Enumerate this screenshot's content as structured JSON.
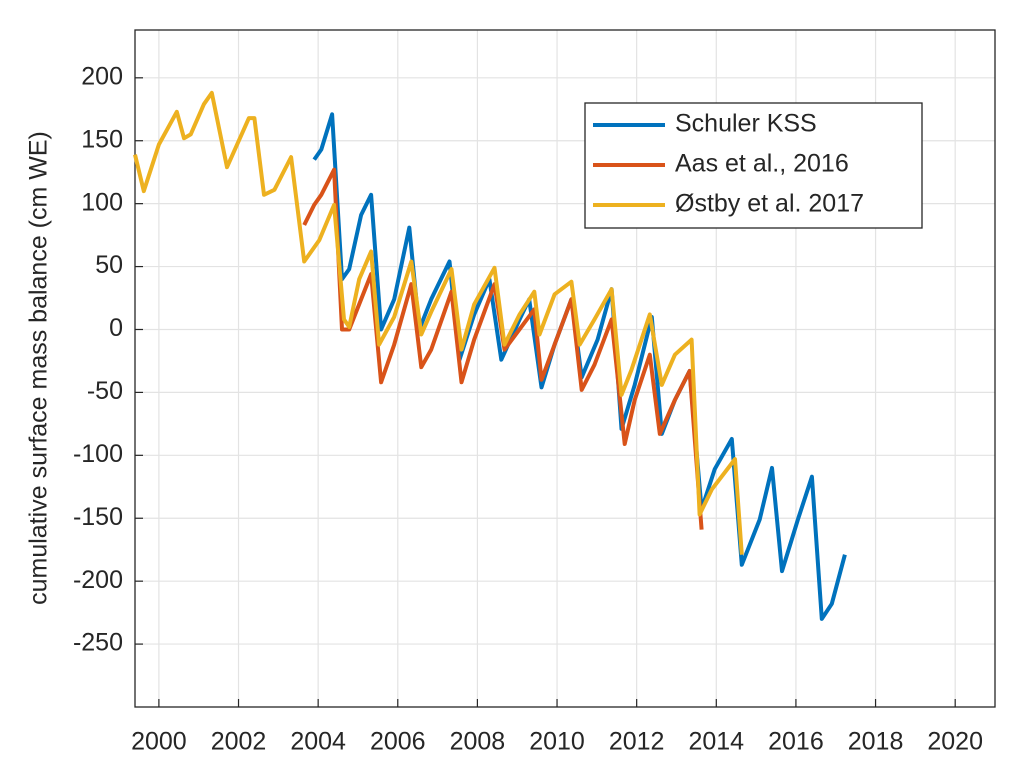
{
  "chart_data": {
    "type": "line",
    "ylabel": "cumulative surface mass balance (cm WE)",
    "xlim": [
      1999.4,
      2021
    ],
    "ylim": [
      -300,
      238
    ],
    "xticks": [
      2000,
      2002,
      2004,
      2006,
      2008,
      2010,
      2012,
      2014,
      2016,
      2018,
      2020
    ],
    "yticks": [
      -250,
      -200,
      -150,
      -100,
      -50,
      0,
      50,
      100,
      150,
      200
    ],
    "grid": true,
    "legend": "northeast",
    "series": [
      {
        "name": "Schuler KSS",
        "color": "#0072BD",
        "x": [
          2003.9,
          2004.08,
          2004.35,
          2004.6,
          2004.78,
          2005.08,
          2005.33,
          2005.58,
          2005.91,
          2006.29,
          2006.54,
          2006.84,
          2007.3,
          2007.55,
          2007.92,
          2008.3,
          2008.6,
          2009.06,
          2009.3,
          2009.61,
          2009.94,
          2010.36,
          2010.62,
          2011.02,
          2011.37,
          2011.62,
          2011.95,
          2012.38,
          2012.63,
          2012.96,
          2013.33,
          2013.63,
          2013.96,
          2014.39,
          2014.64,
          2015.09,
          2015.4,
          2015.65,
          2016.05,
          2016.4,
          2016.65,
          2016.9,
          2017.23
        ],
        "values": [
          135,
          143,
          171,
          40,
          48,
          91,
          107,
          0,
          24,
          81,
          0,
          24,
          54,
          -24,
          12,
          40,
          -24,
          8,
          24,
          -46,
          -12,
          24,
          -38,
          -8,
          32,
          -79,
          -44,
          10,
          -83,
          -56,
          -33,
          -143,
          -111,
          -87,
          -187,
          -151,
          -110,
          -192,
          -151,
          -117,
          -230,
          -218,
          -179
        ]
      },
      {
        "name": "Aas et al., 2016",
        "color": "#D95319",
        "x": [
          2003.65,
          2003.9,
          2004.08,
          2004.4,
          2004.6,
          2004.78,
          2005.33,
          2005.58,
          2005.91,
          2006.34,
          2006.59,
          2006.84,
          2007.35,
          2007.6,
          2007.92,
          2008.43,
          2008.68,
          2009.43,
          2009.61,
          2009.94,
          2010.36,
          2010.62,
          2010.94,
          2011.37,
          2011.7,
          2011.95,
          2012.33,
          2012.58,
          2012.96,
          2013.33,
          2013.63
        ],
        "values": [
          83,
          99,
          107,
          127,
          0,
          0,
          44,
          -42,
          -12,
          36,
          -30,
          -16,
          30,
          -42,
          -8,
          36,
          -16,
          16,
          -40,
          -12,
          24,
          -48,
          -28,
          8,
          -91,
          -56,
          -20,
          -83,
          -56,
          -33,
          -159
        ]
      },
      {
        "name": "Østby et al. 2017",
        "color": "#EDB120",
        "x": [
          1999.4,
          1999.62,
          2000.0,
          2000.45,
          2000.63,
          2000.8,
          2001.13,
          2001.33,
          2001.71,
          2002.26,
          2002.4,
          2002.64,
          2002.9,
          2003.32,
          2003.65,
          2004.03,
          2004.4,
          2004.65,
          2004.78,
          2005.03,
          2005.33,
          2005.53,
          2005.91,
          2006.34,
          2006.59,
          2006.84,
          2007.35,
          2007.6,
          2007.92,
          2008.43,
          2008.68,
          2009.06,
          2009.43,
          2009.56,
          2009.94,
          2010.36,
          2010.57,
          2010.94,
          2011.37,
          2011.62,
          2011.87,
          2012.33,
          2012.63,
          2012.96,
          2013.38,
          2013.58,
          2013.89,
          2014.47,
          2014.64
        ],
        "values": [
          139,
          110,
          147,
          173,
          152,
          155,
          179,
          188,
          129,
          168,
          168,
          107,
          111,
          137,
          54,
          71,
          99,
          8,
          2,
          40,
          62,
          -12,
          10,
          54,
          -4,
          14,
          48,
          -16,
          20,
          49,
          -12,
          12,
          30,
          -4,
          28,
          38,
          -12,
          8,
          32,
          -52,
          -32,
          12,
          -44,
          -20,
          -8,
          -147,
          -127,
          -103,
          -179
        ]
      }
    ]
  }
}
